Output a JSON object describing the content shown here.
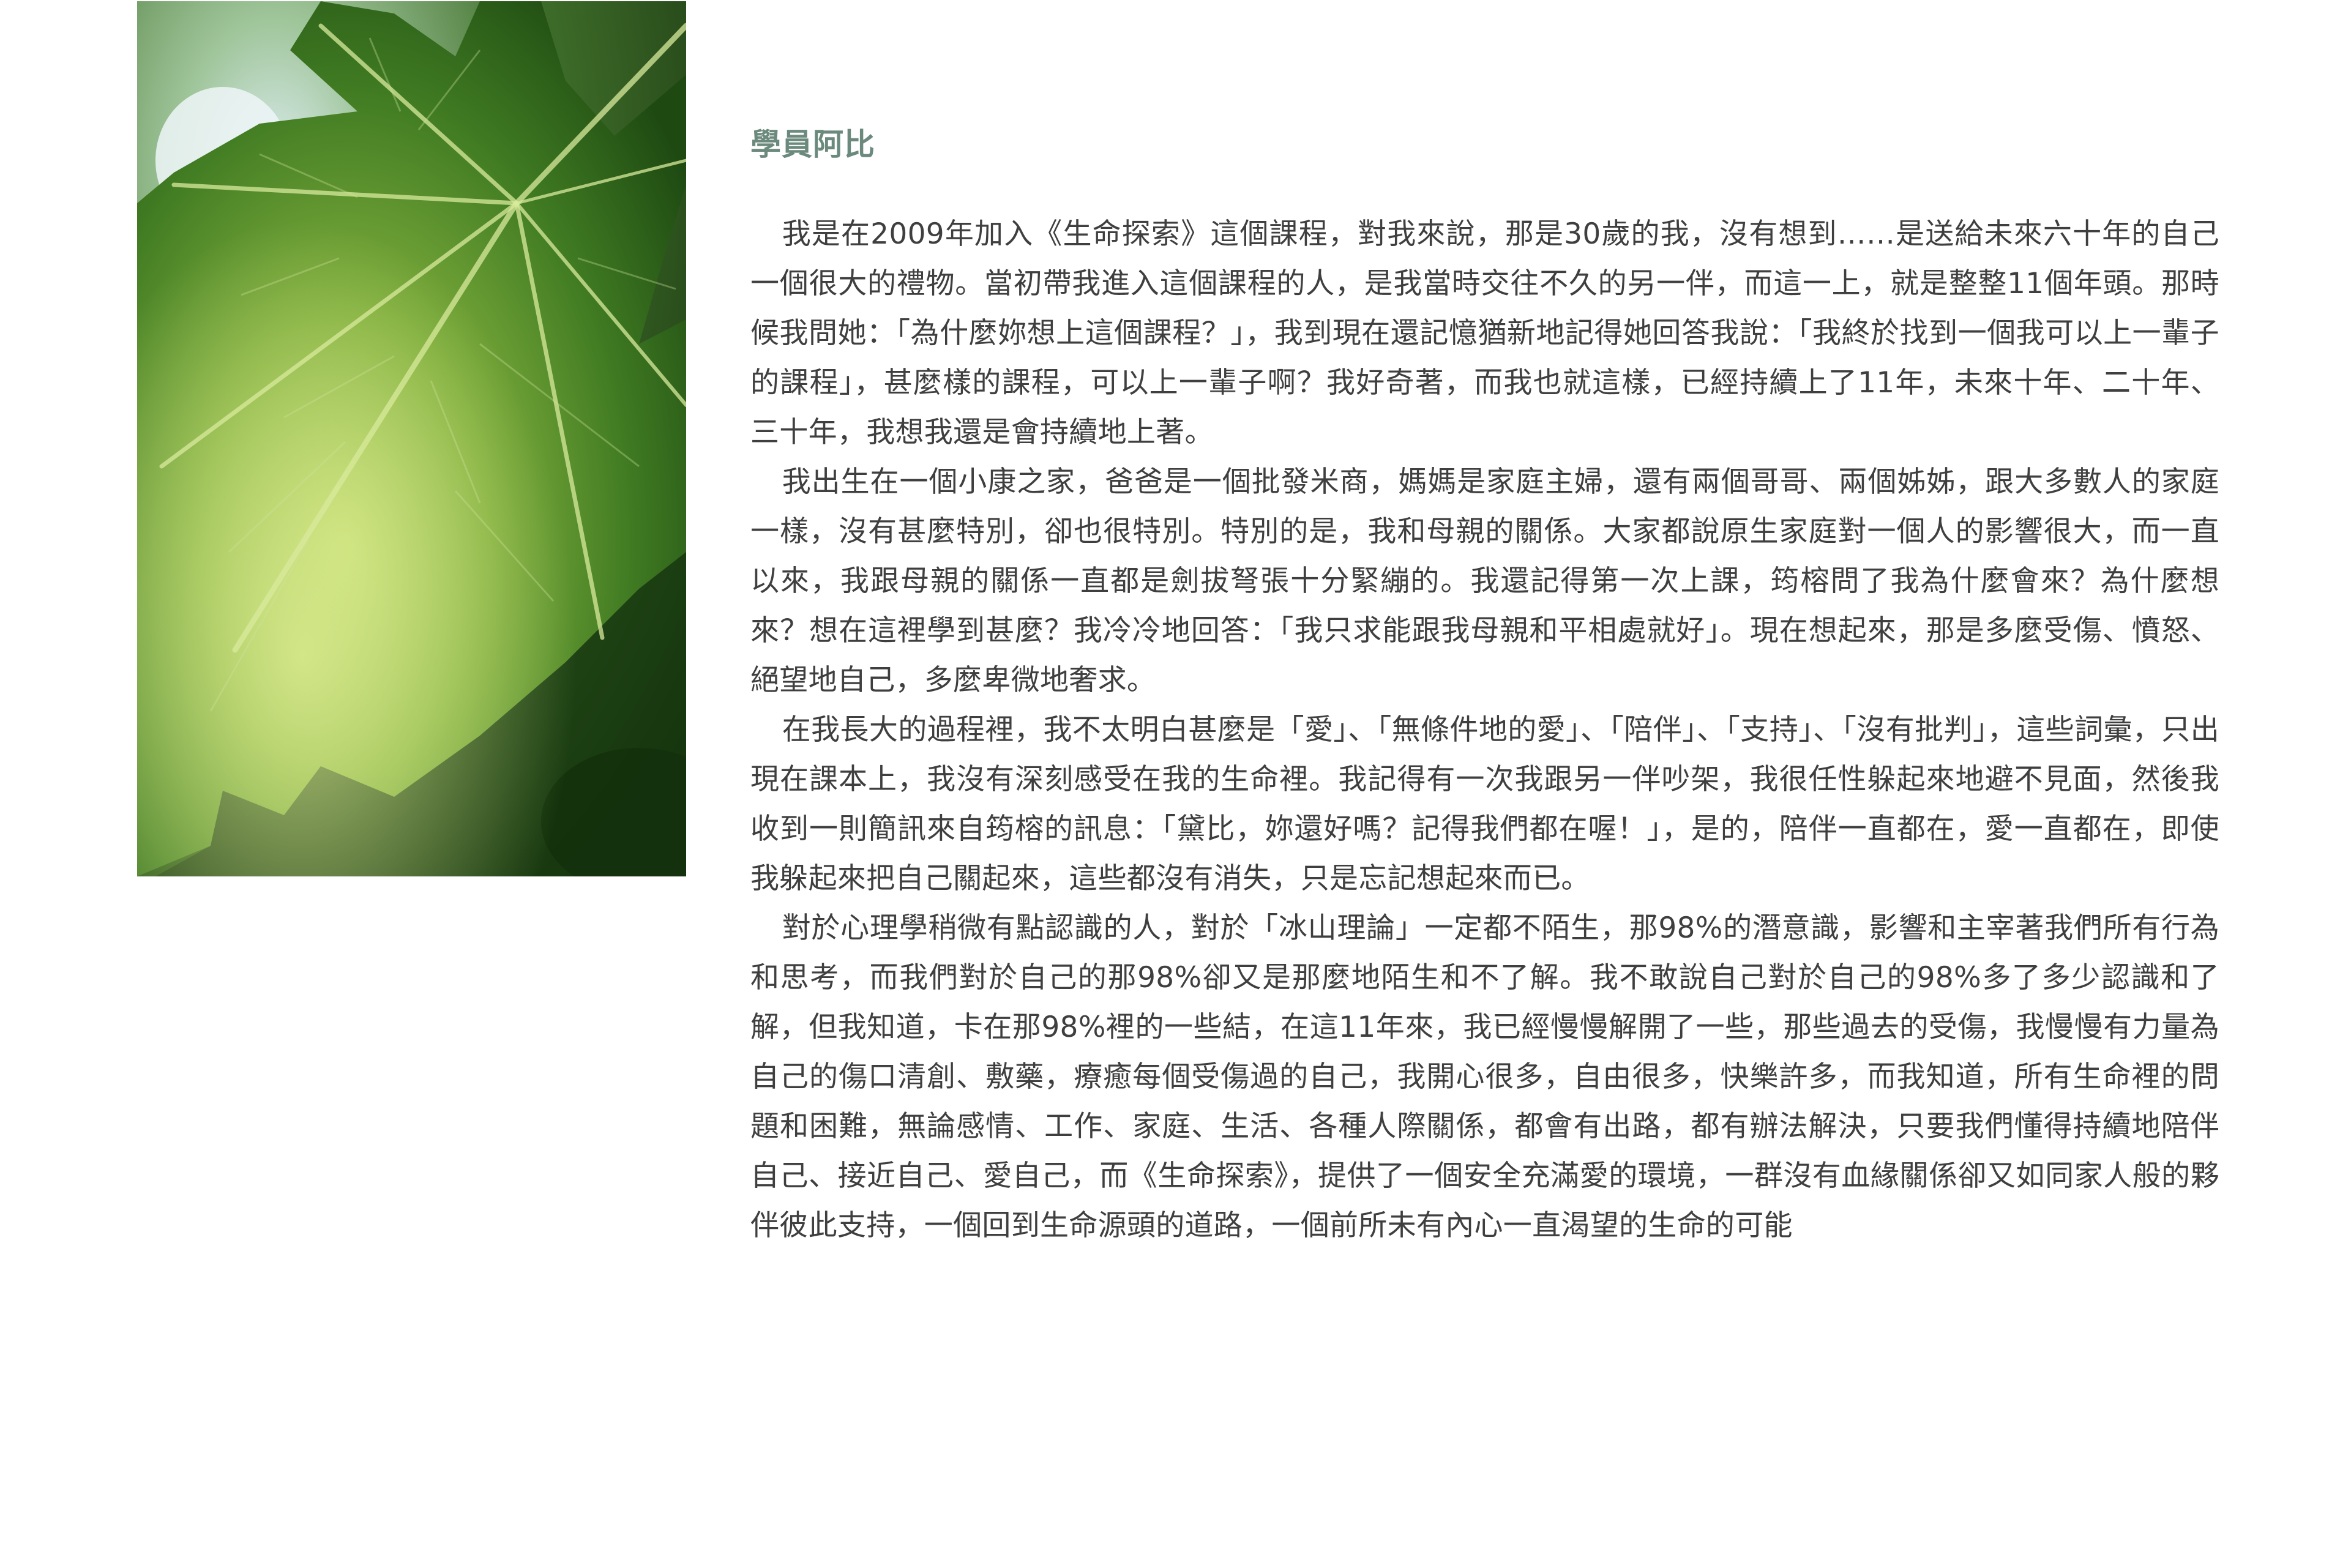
{
  "photo": {
    "subject": "green-maple-leaf-photo"
  },
  "article": {
    "author": "學員阿比",
    "paragraphs": [
      "我是在2009年加入《生命探索》這個課程，對我來說，那是30歲的我，沒有想到……是送給未來六十年的自己一個很大的禮物。當初帶我進入這個課程的人，是我當時交往不久的另一伴，而這一上，就是整整11個年頭。那時候我問她：「為什麼妳想上這個課程？」，我到現在還記憶猶新地記得她回答我說：「我終於找到一個我可以上一輩子的課程」，甚麼樣的課程，可以上一輩子啊？我好奇著，而我也就這樣，已經持續上了11年，未來十年、二十年、三十年，我想我還是會持續地上著。",
      "我出生在一個小康之家，爸爸是一個批發米商，媽媽是家庭主婦，還有兩個哥哥、兩個姊姊，跟大多數人的家庭一樣，沒有甚麼特別，卻也很特別。特別的是，我和母親的關係。大家都說原生家庭對一個人的影響很大，而一直以來，我跟母親的關係一直都是劍拔弩張十分緊繃的。我還記得第一次上課，筠榕問了我為什麼會來？為什麼想來？想在這裡學到甚麼？我冷冷地回答：「我只求能跟我母親和平相處就好」。現在想起來，那是多麼受傷、憤怒、絕望地自己，多麼卑微地奢求。",
      "在我長大的過程裡，我不太明白甚麼是「愛」、「無條件地的愛」、「陪伴」、「支持」、「沒有批判」，這些詞彙，只出現在課本上，我沒有深刻感受在我的生命裡。我記得有一次我跟另一伴吵架，我很任性躲起來地避不見面，然後我收到一則簡訊來自筠榕的訊息：「黛比，妳還好嗎？記得我們都在喔！」，是的，陪伴一直都在，愛一直都在，即使我躲起來把自己關起來，這些都沒有消失，只是忘記想起來而已。",
      "對於心理學稍微有點認識的人，對於「冰山理論」一定都不陌生，那98%的潛意識，影響和主宰著我們所有行為和思考，而我們對於自己的那98%卻又是那麼地陌生和不了解。我不敢說自己對於自己的98%多了多少認識和了解，但我知道，卡在那98%裡的一些結，在這11年來，我已經慢慢解開了一些，那些過去的受傷，我慢慢有力量為自己的傷口清創、敷藥，療癒每個受傷過的自己，我開心很多，自由很多，快樂許多，而我知道，所有生命裡的問題和困難，無論感情、工作、家庭、生活、各種人際關係，都會有出路，都有辦法解決，只要我們懂得持續地陪伴自己、接近自己、愛自己，而《生命探索》，提供了一個安全充滿愛的環境，一群沒有血緣關係卻又如同家人般的夥伴彼此支持，一個回到生命源頭的道路，一個前所未有內心一直渴望的生命的可能"
    ]
  }
}
